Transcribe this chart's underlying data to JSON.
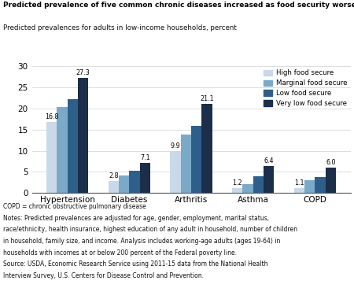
{
  "title": "Predicted prevalence of five common chronic diseases increased as food security worsened",
  "subtitle": "Predicted prevalences for adults in low-income households, percent",
  "categories": [
    "Hypertension",
    "Diabetes",
    "Arthritis",
    "Asthma",
    "COPD"
  ],
  "series": {
    "High food secure": [
      16.8,
      2.8,
      9.9,
      1.2,
      1.1
    ],
    "Marginal food secure": [
      20.3,
      4.2,
      13.8,
      2.1,
      3.1
    ],
    "Low food secure": [
      22.3,
      5.3,
      15.9,
      4.0,
      3.8
    ],
    "Very low food secure": [
      27.3,
      7.1,
      21.1,
      6.4,
      6.0
    ]
  },
  "colors": {
    "High food secure": "#c9d9ea",
    "Marginal food secure": "#7aaac8",
    "Low food secure": "#2e5f8a",
    "Very low food secure": "#1b2e4a"
  },
  "ylim": [
    0,
    30
  ],
  "yticks": [
    0,
    5,
    10,
    15,
    20,
    25,
    30
  ],
  "footnote_lines": [
    "COPD = chronic obstructive pulmonary disease",
    "Notes: Predicted prevalences are adjusted for age, gender, employment, marital status,",
    "race/ethnicity, health insurance, highest education of any adult in household, number of children",
    "in household, family size, and income. Analysis includes working-age adults (ages 19-64) in",
    "households with incomes at or below 200 percent of the Federal poverty line.",
    "Source: USDA, Economic Research Service using 2011-15 data from the National Health",
    "Interview Survey, U.S. Centers for Disease Control and Prevention."
  ]
}
